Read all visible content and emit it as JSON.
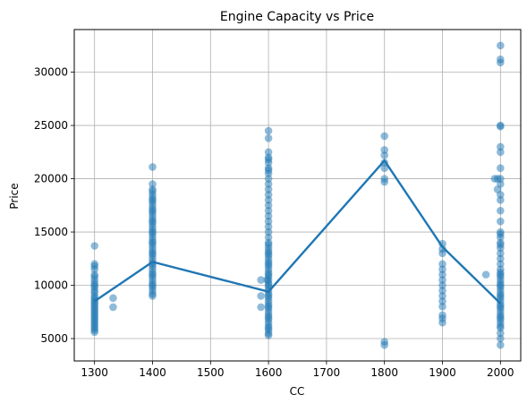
{
  "chart_data": {
    "type": "scatter",
    "title": "Engine Capacity vs Price",
    "xlabel": "CC",
    "ylabel": "Price",
    "xlim": [
      1265,
      2035
    ],
    "ylim": [
      2900,
      34000
    ],
    "xticks": [
      1300,
      1400,
      1500,
      1600,
      1700,
      1800,
      1900,
      2000
    ],
    "yticks": [
      5000,
      10000,
      15000,
      20000,
      25000,
      30000
    ],
    "grid": true,
    "colors": {
      "points": "#1f77b4",
      "line": "#1f77b4",
      "grid": "#b0b0b0"
    },
    "groups": [
      {
        "x": 1300,
        "y": [
          13700,
          12000,
          11800,
          11500,
          11000,
          10800,
          10500,
          10200,
          10000,
          9800,
          9500,
          9300,
          9000,
          8800,
          8600,
          8400,
          8200,
          8000,
          7800,
          7600,
          7400,
          7200,
          7000,
          6800,
          6600,
          6400,
          6200,
          6000,
          5800,
          5600
        ]
      },
      {
        "x": 1332,
        "y": [
          8800,
          7950
        ]
      },
      {
        "x": 1400,
        "y": [
          21100,
          19500,
          19000,
          18800,
          18500,
          18200,
          18000,
          17800,
          17500,
          17200,
          17000,
          16800,
          16500,
          16200,
          16000,
          15800,
          15500,
          15200,
          15000,
          14800,
          14500,
          14200,
          14000,
          13800,
          13500,
          13200,
          13000,
          12800,
          12500,
          12200,
          12000,
          11800,
          11500,
          11200,
          11000,
          10800,
          10500,
          10200,
          10000,
          9800,
          9500,
          9200,
          9000
        ]
      },
      {
        "x": 1587,
        "y": [
          10500,
          9000,
          7950
        ]
      },
      {
        "x": 1598,
        "y": [
          10500
        ]
      },
      {
        "x": 1600,
        "y": [
          24500,
          23800,
          22500,
          22000,
          21800,
          21500,
          21000,
          20800,
          20500,
          20000,
          19500,
          19000,
          18500,
          18000,
          17500,
          17000,
          16500,
          16000,
          15500,
          15000,
          14500,
          14000,
          13800,
          13500,
          13200,
          13000,
          12800,
          12500,
          12200,
          12000,
          11800,
          11500,
          11200,
          11000,
          10800,
          10500,
          10200,
          10000,
          9800,
          9500,
          9200,
          9000,
          8800,
          8500,
          8200,
          8000,
          7800,
          7500,
          7200,
          7000,
          6800,
          6500,
          6200,
          6000,
          5800,
          5500,
          5300
        ]
      },
      {
        "x": 1800,
        "y": [
          24000,
          22700,
          22200,
          21500,
          21000,
          20000,
          19700,
          4700,
          4400
        ]
      },
      {
        "x": 1900,
        "y": [
          13900,
          13400,
          13000,
          12000,
          11500,
          11000,
          10500,
          10000,
          9500,
          9000,
          8500,
          8000,
          7200,
          6900,
          6500
        ]
      },
      {
        "x": 1975,
        "y": [
          11000
        ]
      },
      {
        "x": 1990,
        "y": [
          20000
        ]
      },
      {
        "x": 1995,
        "y": [
          20000,
          19000
        ]
      },
      {
        "x": 2000,
        "y": [
          32500,
          31200,
          30900,
          25000,
          24900,
          23000,
          22500,
          21000,
          20000,
          19500,
          18500,
          18000,
          17000,
          16000,
          15000,
          14800,
          14500,
          14000,
          13800,
          13500,
          13000,
          12500,
          12000,
          11500,
          11200,
          11000,
          10800,
          10500,
          10200,
          10000,
          9800,
          9500,
          9200,
          9000,
          8800,
          8500,
          8200,
          8000,
          7800,
          7500,
          7200,
          7000,
          6800,
          6500,
          6200,
          6000,
          5500,
          5000,
          4400
        ]
      }
    ],
    "mean_line": {
      "x": [
        1300,
        1400,
        1600,
        1800,
        1900,
        2000
      ],
      "y": [
        8500,
        12200,
        9400,
        21700,
        13600,
        8300
      ]
    }
  }
}
